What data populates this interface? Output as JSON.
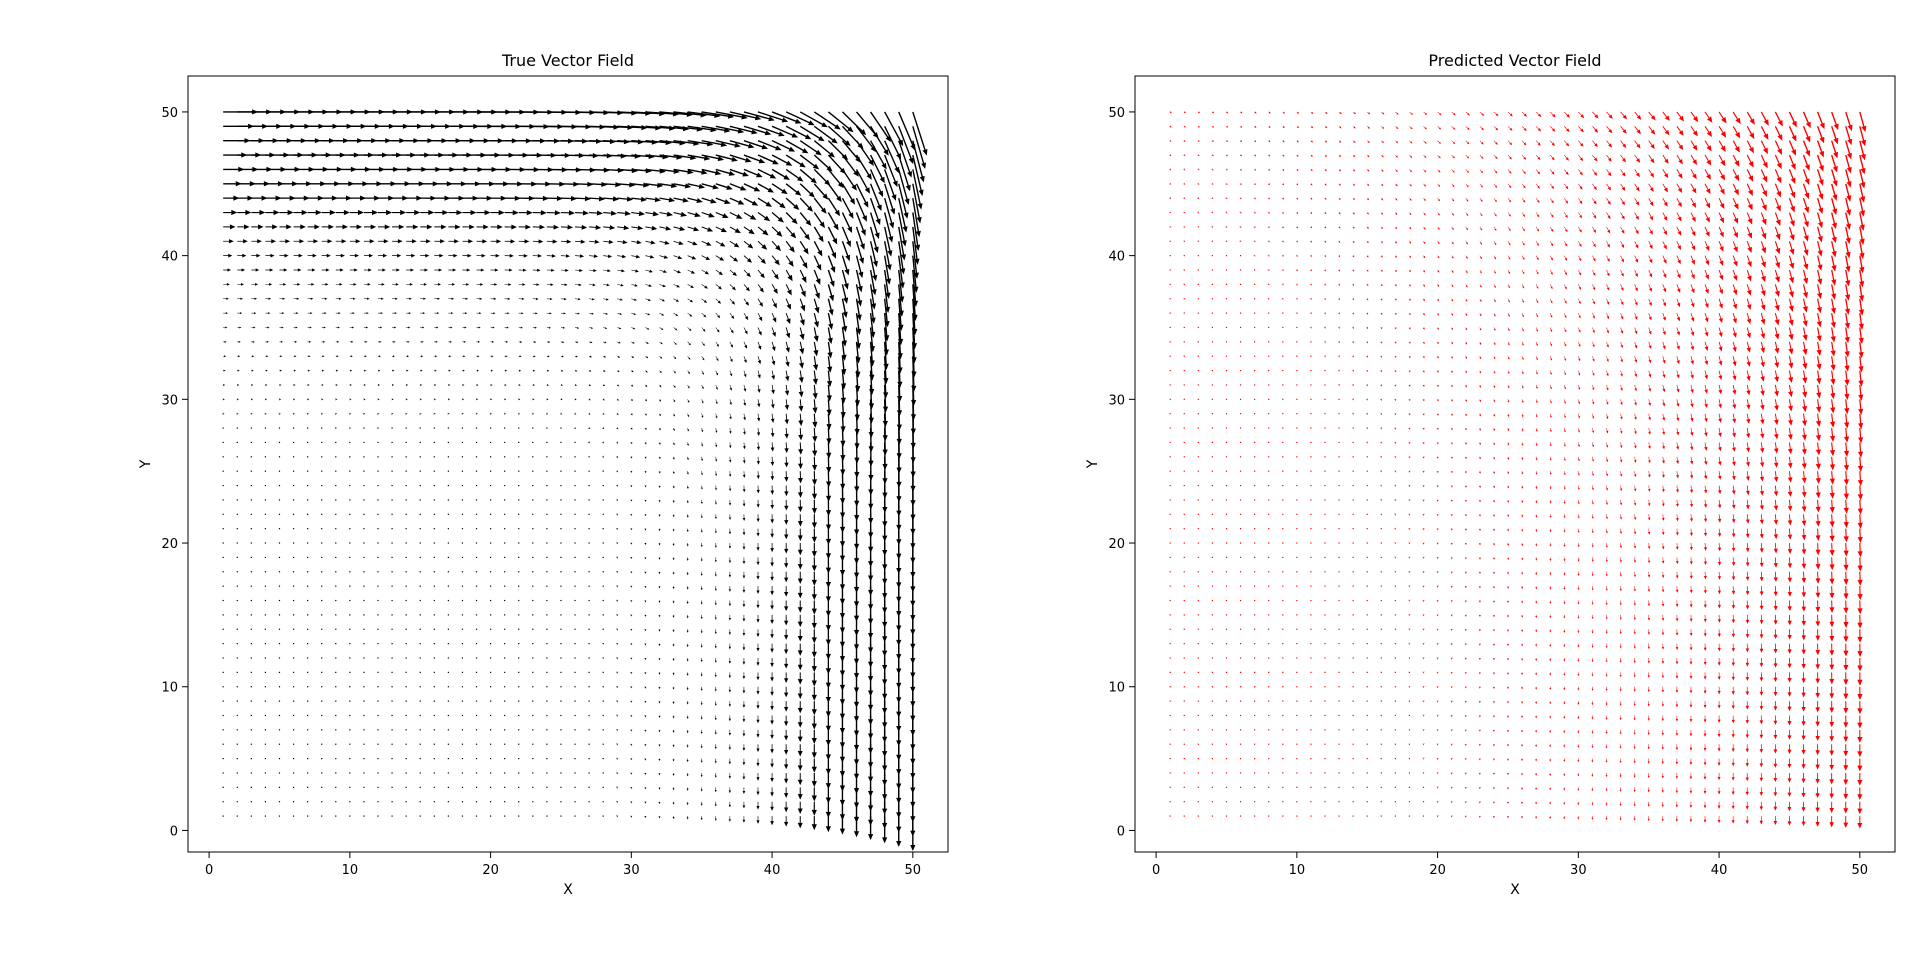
{
  "chart_data": [
    {
      "type": "quiver",
      "title": "True Vector Field",
      "xlabel": "X",
      "ylabel": "Y",
      "xlim": [
        -1.5,
        52.5
      ],
      "ylim": [
        -1.5,
        52.5
      ],
      "x_ticks": [
        0,
        10,
        20,
        30,
        40,
        50
      ],
      "y_ticks": [
        0,
        10,
        20,
        30,
        40,
        50
      ],
      "grid_x": {
        "start": 1,
        "stop": 50,
        "step": 1
      },
      "grid_y": {
        "start": 1,
        "stop": 50,
        "step": 1
      },
      "field_description": "Flow near upper-right corner: arrows along top point right (+x), arrows along right side point down (-y); magnitude grows toward top and right edges, near zero in lower-left.",
      "color": "#000000",
      "arrow_scale": 1.0
    },
    {
      "type": "quiver",
      "title": "Predicted Vector Field",
      "xlabel": "X",
      "ylabel": "Y",
      "xlim": [
        -1.5,
        52.5
      ],
      "ylim": [
        -1.5,
        52.5
      ],
      "x_ticks": [
        0,
        10,
        20,
        30,
        40,
        50
      ],
      "y_ticks": [
        0,
        10,
        20,
        30,
        40,
        50
      ],
      "grid_x": {
        "start": 1,
        "stop": 50,
        "step": 1
      },
      "grid_y": {
        "start": 1,
        "stop": 50,
        "step": 1
      },
      "field_description": "Smoother prediction: arrows mostly point down-right to down, magnitude increasing toward top-right and right edge.",
      "color": "#ff0000",
      "arrow_scale": 0.6
    }
  ]
}
